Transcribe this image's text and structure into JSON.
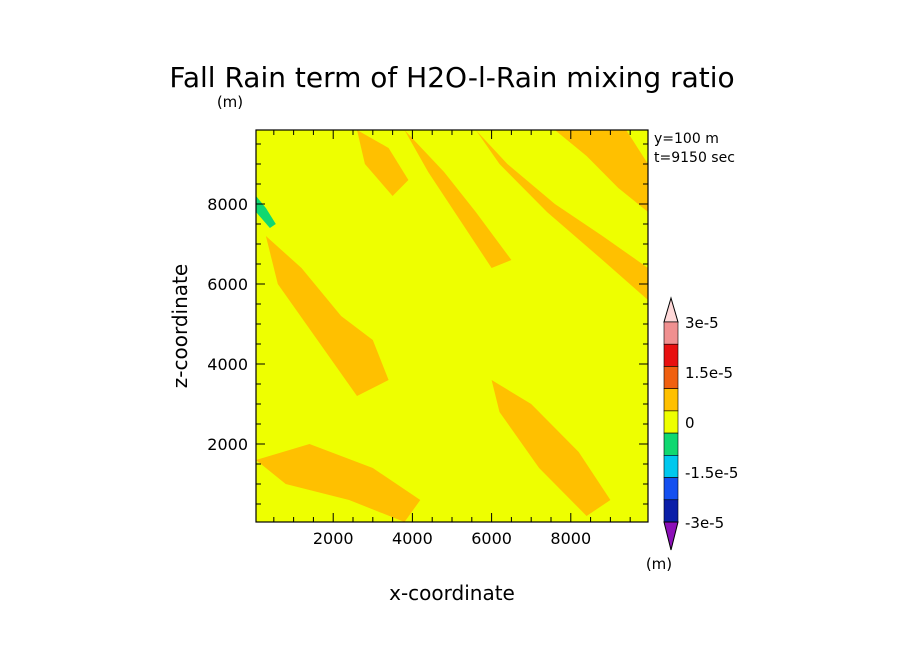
{
  "chart_data": {
    "type": "heatmap",
    "title": "Fall Rain term of H2O-l-Rain mixing ratio",
    "title_units": "(m)",
    "xlabel": "x-coordinate",
    "ylabel": "z-coordinate",
    "xlim": [
      50,
      9950
    ],
    "ylim": [
      50,
      9850
    ],
    "x_ticks": [
      2000,
      4000,
      6000,
      8000
    ],
    "y_ticks": [
      2000,
      4000,
      6000,
      8000
    ],
    "x_tick_labels": [
      "2000",
      "4000",
      "6000",
      "8000"
    ],
    "y_tick_labels": [
      "2000",
      "4000",
      "6000",
      "8000"
    ],
    "info_lines": [
      "y=100 m",
      "t=9150 sec"
    ],
    "colorbar": {
      "levels": [
        -3e-05,
        -2.25e-05,
        -1.5e-05,
        -7.5e-06,
        0,
        7.5e-06,
        1.5e-05,
        2.25e-05,
        3e-05
      ],
      "colors": [
        "#8c10b8",
        "#0b1fa8",
        "#1450f0",
        "#00c8ee",
        "#10d870",
        "#eeff00",
        "#ffc000",
        "#f06010",
        "#e81010",
        "#f09090",
        "#ffd8d8"
      ],
      "tick_labels": [
        "3e-5",
        "1.5e-5",
        "0",
        "-1.5e-5",
        "-3e-5"
      ],
      "tick_values": [
        3e-05,
        1.5e-05,
        0,
        -1.5e-05,
        -3e-05
      ],
      "units": "(m)"
    },
    "field_description_colors": {
      "background": "#eeff00",
      "positive_band": "#ffc000",
      "negative_patch": "#10d870"
    },
    "regions": [
      {
        "level": "0..7.5e-6",
        "x": [
          300,
          1200,
          2200,
          3000,
          3400,
          2600,
          1600,
          600,
          300
        ],
        "y": [
          7200,
          6400,
          5200,
          4600,
          3600,
          3200,
          4600,
          6000,
          7200
        ]
      },
      {
        "level": "0..7.5e-6",
        "x": [
          3800,
          4800,
          5600,
          6200,
          6500,
          6000,
          5200,
          4400,
          3800
        ],
        "y": [
          9850,
          8800,
          7800,
          7000,
          6600,
          6400,
          7600,
          8800,
          9850
        ]
      },
      {
        "level": "0..7.5e-6",
        "x": [
          5600,
          6400,
          7600,
          8800,
          9950,
          9950,
          8800,
          7400,
          6200,
          5600
        ],
        "y": [
          9850,
          9000,
          8000,
          7200,
          6400,
          5600,
          6600,
          7800,
          9000,
          9850
        ]
      },
      {
        "level": "0..7.5e-6",
        "x": [
          7600,
          8400,
          9200,
          9950,
          9950,
          9400,
          8600,
          7600
        ],
        "y": [
          9850,
          9200,
          8400,
          7800,
          9000,
          9850,
          9850,
          9850
        ]
      },
      {
        "level": "0..7.5e-6",
        "x": [
          6000,
          7000,
          8200,
          9000,
          8400,
          7200,
          6200,
          6000
        ],
        "y": [
          3600,
          3000,
          1800,
          600,
          200,
          1400,
          2800,
          3600
        ]
      },
      {
        "level": "0..7.5e-6",
        "x": [
          50,
          1400,
          3000,
          4200,
          3800,
          2400,
          800,
          50
        ],
        "y": [
          1600,
          2000,
          1400,
          600,
          50,
          600,
          1000,
          1600
        ]
      },
      {
        "level": "0..7.5e-6",
        "x": [
          2600,
          3400,
          3900,
          3500,
          2800,
          2600
        ],
        "y": [
          9850,
          9400,
          8600,
          8200,
          9000,
          9850
        ]
      },
      {
        "level": "-7.5e-6..0",
        "x": [
          50,
          300,
          550,
          400,
          50
        ],
        "y": [
          8200,
          7900,
          7500,
          7400,
          7800
        ]
      }
    ]
  }
}
